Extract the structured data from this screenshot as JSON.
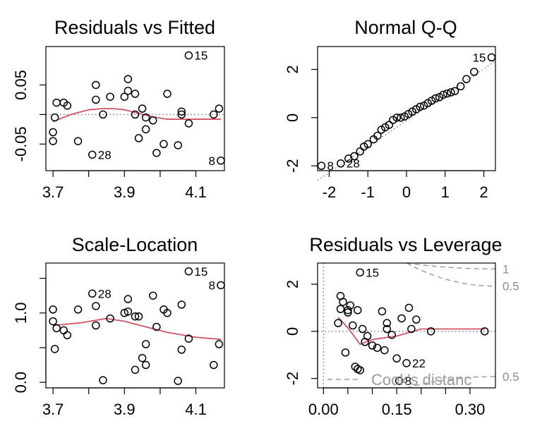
{
  "chart_data": [
    {
      "id": "rvf",
      "type": "scatter",
      "title": "Residuals vs Fitted",
      "xlabel": "",
      "ylabel": "",
      "xlim": [
        3.68,
        4.18
      ],
      "ylim": [
        -0.095,
        0.115
      ],
      "xticks": [
        3.7,
        3.8,
        3.9,
        4.0,
        4.1
      ],
      "xtick_labels": [
        "3.7",
        "",
        "3.9",
        "",
        "4.1"
      ],
      "yticks": [
        -0.05,
        0.0,
        0.05
      ],
      "ytick_labels": [
        "-0.05",
        "",
        "0.05"
      ],
      "points": [
        [
          3.7,
          -0.03
        ],
        [
          3.7,
          -0.045
        ],
        [
          3.705,
          -0.005
        ],
        [
          3.71,
          0.02
        ],
        [
          3.73,
          0.02
        ],
        [
          3.74,
          0.015
        ],
        [
          3.77,
          -0.045
        ],
        [
          3.81,
          -0.068
        ],
        [
          3.82,
          0.05
        ],
        [
          3.82,
          0.025
        ],
        [
          3.84,
          0.0
        ],
        [
          3.86,
          0.03
        ],
        [
          3.9,
          0.03
        ],
        [
          3.91,
          0.04
        ],
        [
          3.91,
          0.06
        ],
        [
          3.93,
          0.035
        ],
        [
          3.93,
          0.0
        ],
        [
          3.94,
          -0.04
        ],
        [
          3.95,
          0.01
        ],
        [
          3.96,
          -0.025
        ],
        [
          3.96,
          -0.005
        ],
        [
          3.98,
          -0.01
        ],
        [
          3.99,
          -0.065
        ],
        [
          4.01,
          -0.05
        ],
        [
          4.02,
          0.035
        ],
        [
          4.05,
          -0.052
        ],
        [
          4.06,
          0.005
        ],
        [
          4.06,
          0.0
        ],
        [
          4.08,
          -0.015
        ],
        [
          4.08,
          0.1
        ],
        [
          4.15,
          0.0
        ],
        [
          4.17,
          -0.078
        ],
        [
          4.165,
          0.01
        ]
      ],
      "smoother": [
        [
          3.7,
          -0.012
        ],
        [
          3.75,
          0.0
        ],
        [
          3.8,
          0.008
        ],
        [
          3.84,
          0.01
        ],
        [
          3.87,
          0.01
        ],
        [
          3.9,
          0.008
        ],
        [
          3.94,
          0.002
        ],
        [
          3.98,
          -0.004
        ],
        [
          4.02,
          -0.008
        ],
        [
          4.1,
          -0.008
        ],
        [
          4.17,
          -0.008
        ]
      ],
      "reference_line": 0,
      "labels": [
        {
          "text": "15",
          "x": 4.08,
          "y": 0.1
        },
        {
          "text": "28",
          "x": 3.81,
          "y": -0.068
        },
        {
          "text": "8",
          "x": 4.17,
          "y": -0.078
        }
      ]
    },
    {
      "id": "qq",
      "type": "scatter",
      "title": "Normal Q-Q",
      "xlabel": "",
      "ylabel": "",
      "xlim": [
        -2.3,
        2.3
      ],
      "ylim": [
        -2.2,
        2.95
      ],
      "xticks": [
        -2,
        -1,
        0,
        1,
        2
      ],
      "xtick_labels": [
        "-2",
        "-1",
        "0",
        "1",
        "2"
      ],
      "yticks": [
        -2,
        0,
        2
      ],
      "ytick_labels": [
        "-2",
        "0",
        "2"
      ],
      "points": [
        [
          -2.2,
          -2.0
        ],
        [
          -1.7,
          -1.9
        ],
        [
          -1.5,
          -1.7
        ],
        [
          -1.35,
          -1.6
        ],
        [
          -1.2,
          -1.4
        ],
        [
          -1.1,
          -1.2
        ],
        [
          -1.0,
          -1.1
        ],
        [
          -0.85,
          -0.9
        ],
        [
          -0.75,
          -0.75
        ],
        [
          -0.65,
          -0.5
        ],
        [
          -0.55,
          -0.4
        ],
        [
          -0.45,
          -0.3
        ],
        [
          -0.35,
          -0.1
        ],
        [
          -0.25,
          0.0
        ],
        [
          -0.15,
          0.0
        ],
        [
          -0.05,
          0.05
        ],
        [
          0.05,
          0.15
        ],
        [
          0.15,
          0.25
        ],
        [
          0.25,
          0.35
        ],
        [
          0.35,
          0.45
        ],
        [
          0.45,
          0.5
        ],
        [
          0.55,
          0.6
        ],
        [
          0.65,
          0.7
        ],
        [
          0.75,
          0.8
        ],
        [
          0.85,
          0.85
        ],
        [
          0.95,
          0.95
        ],
        [
          1.05,
          1.0
        ],
        [
          1.15,
          1.05
        ],
        [
          1.25,
          1.1
        ],
        [
          1.4,
          1.3
        ],
        [
          1.55,
          1.6
        ],
        [
          1.75,
          1.9
        ],
        [
          2.2,
          2.5
        ]
      ],
      "reference_line": [
        [
          -2.3,
          -2.6
        ],
        [
          2.3,
          2.35
        ]
      ],
      "labels": [
        {
          "text": "15",
          "x": 2.2,
          "y": 2.5
        },
        {
          "text": "8",
          "x": -2.2,
          "y": -2.0
        },
        {
          "text": "28",
          "x": -1.7,
          "y": -1.9
        }
      ]
    },
    {
      "id": "sl",
      "type": "scatter",
      "title": "Scale-Location",
      "xlabel": "",
      "ylabel": "",
      "xlim": [
        3.68,
        4.18
      ],
      "ylim": [
        -0.08,
        1.72
      ],
      "xticks": [
        3.7,
        3.8,
        3.9,
        4.0,
        4.1
      ],
      "xtick_labels": [
        "3.7",
        "",
        "3.9",
        "",
        "4.1"
      ],
      "yticks": [
        0.0,
        0.5,
        1.0,
        1.5
      ],
      "ytick_labels": [
        "0.0",
        "",
        "1.0",
        ""
      ],
      "points": [
        [
          3.7,
          0.88
        ],
        [
          3.7,
          1.05
        ],
        [
          3.705,
          0.48
        ],
        [
          3.71,
          0.78
        ],
        [
          3.73,
          0.75
        ],
        [
          3.74,
          0.68
        ],
        [
          3.77,
          1.05
        ],
        [
          3.81,
          1.28
        ],
        [
          3.82,
          0.82
        ],
        [
          3.82,
          1.1
        ],
        [
          3.84,
          0.03
        ],
        [
          3.86,
          0.92
        ],
        [
          3.9,
          1.0
        ],
        [
          3.91,
          1.02
        ],
        [
          3.91,
          1.2
        ],
        [
          3.93,
          0.95
        ],
        [
          3.93,
          0.18
        ],
        [
          3.94,
          0.95
        ],
        [
          3.95,
          0.35
        ],
        [
          3.96,
          0.55
        ],
        [
          3.96,
          0.25
        ],
        [
          3.98,
          1.25
        ],
        [
          3.99,
          0.8
        ],
        [
          4.01,
          1.05
        ],
        [
          4.02,
          1.0
        ],
        [
          4.05,
          0.02
        ],
        [
          4.06,
          0.47
        ],
        [
          4.06,
          1.12
        ],
        [
          4.08,
          0.63
        ],
        [
          4.08,
          1.6
        ],
        [
          4.15,
          0.25
        ],
        [
          4.17,
          1.4
        ],
        [
          4.165,
          0.55
        ]
      ],
      "smoother": [
        [
          3.7,
          0.82
        ],
        [
          3.78,
          0.86
        ],
        [
          3.85,
          0.92
        ],
        [
          3.9,
          0.88
        ],
        [
          3.96,
          0.8
        ],
        [
          4.02,
          0.72
        ],
        [
          4.1,
          0.65
        ],
        [
          4.17,
          0.62
        ]
      ],
      "labels": [
        {
          "text": "28",
          "x": 3.81,
          "y": 1.28
        },
        {
          "text": "15",
          "x": 4.08,
          "y": 1.6
        },
        {
          "text": "8",
          "x": 4.17,
          "y": 1.4
        }
      ]
    },
    {
      "id": "rvl",
      "type": "scatter",
      "title": "Residuals vs Leverage",
      "xlabel": "",
      "ylabel": "",
      "xlim": [
        -0.012,
        0.352
      ],
      "ylim": [
        -2.4,
        2.9
      ],
      "xticks": [
        0.0,
        0.05,
        0.1,
        0.15,
        0.2,
        0.25,
        0.3
      ],
      "xtick_labels": [
        "0.00",
        "",
        "",
        "0.15",
        "",
        "",
        "0.30"
      ],
      "yticks": [
        -2,
        0,
        2
      ],
      "ytick_labels": [
        "-2",
        "0",
        "2"
      ],
      "points": [
        [
          0.03,
          0.35
        ],
        [
          0.035,
          0.95
        ],
        [
          0.035,
          1.5
        ],
        [
          0.04,
          1.25
        ],
        [
          0.045,
          -0.9
        ],
        [
          0.05,
          0.8
        ],
        [
          0.05,
          0.9
        ],
        [
          0.055,
          1.1
        ],
        [
          0.06,
          0.25
        ],
        [
          0.065,
          -1.5
        ],
        [
          0.07,
          -1.6
        ],
        [
          0.07,
          0.9
        ],
        [
          0.075,
          -1.65
        ],
        [
          0.075,
          2.5
        ],
        [
          0.08,
          0.1
        ],
        [
          0.085,
          -0.45
        ],
        [
          0.09,
          -0.2
        ],
        [
          0.1,
          -0.6
        ],
        [
          0.11,
          -0.7
        ],
        [
          0.12,
          0.85
        ],
        [
          0.125,
          -0.8
        ],
        [
          0.13,
          0.1
        ],
        [
          0.13,
          0.35
        ],
        [
          0.14,
          -0.15
        ],
        [
          0.15,
          -1.15
        ],
        [
          0.155,
          -2.1
        ],
        [
          0.16,
          0.55
        ],
        [
          0.17,
          -1.35
        ],
        [
          0.175,
          1.0
        ],
        [
          0.18,
          0.1
        ],
        [
          0.19,
          0.5
        ],
        [
          0.22,
          0.0
        ],
        [
          0.33,
          0.0
        ]
      ],
      "smoother": [
        [
          0.03,
          0.6
        ],
        [
          0.05,
          0.15
        ],
        [
          0.075,
          -0.55
        ],
        [
          0.1,
          -0.35
        ],
        [
          0.15,
          -0.2
        ],
        [
          0.2,
          0.1
        ],
        [
          0.33,
          0.1
        ]
      ],
      "reference_line": 0,
      "cooks_levels": [
        {
          "label": "1",
          "x_end": 0.352,
          "y_end": 2.65
        },
        {
          "label": "0.5",
          "x_end": 0.352,
          "y_end": 1.92
        },
        {
          "label": "0.5",
          "x_end": 0.352,
          "y_end": -1.92
        }
      ],
      "labels": [
        {
          "text": "15",
          "x": 0.075,
          "y": 2.5
        },
        {
          "text": "22",
          "x": 0.17,
          "y": -1.35
        },
        {
          "text": "8",
          "x": 0.155,
          "y": -2.1
        }
      ],
      "legend": {
        "text": "Cook's distanc",
        "position": "bottom-right"
      }
    }
  ]
}
